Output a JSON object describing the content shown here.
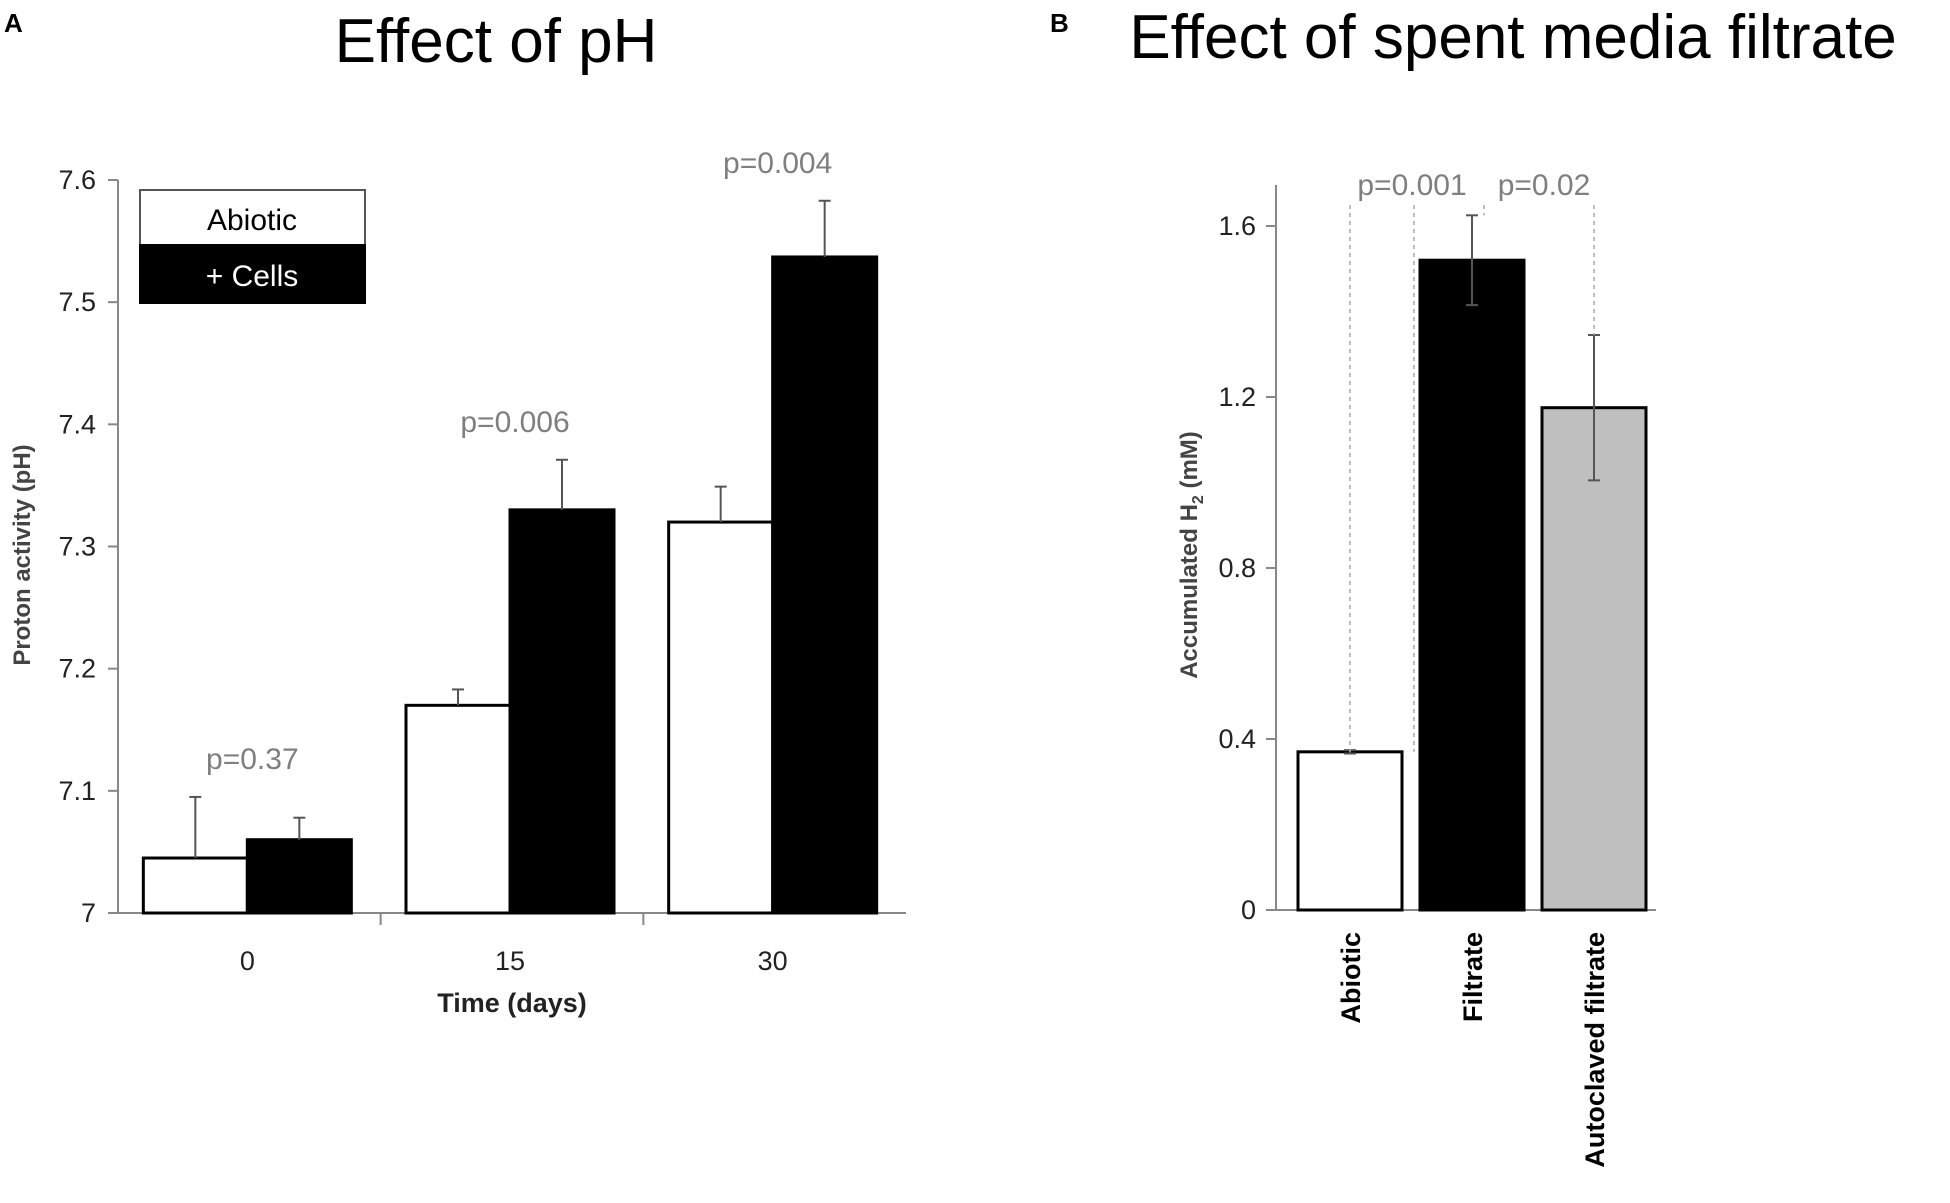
{
  "chart_data": [
    {
      "panel": "A",
      "type": "bar",
      "title": "Effect of pH",
      "xlabel": "Time (days)",
      "ylabel": "Proton activity (pH)",
      "categories": [
        "0",
        "15",
        "30"
      ],
      "ylim": [
        7.0,
        7.6
      ],
      "yticks": [
        "7",
        "7.1",
        "7.2",
        "7.3",
        "7.4",
        "7.5",
        "7.6"
      ],
      "series": [
        {
          "name": "Abiotic",
          "color": "#ffffff",
          "values": [
            7.045,
            7.17,
            7.32
          ],
          "errors": [
            0.05,
            0.013,
            0.029
          ]
        },
        {
          "name": "+ Cells",
          "color": "#000000",
          "values": [
            7.06,
            7.33,
            7.537
          ],
          "errors": [
            0.018,
            0.041,
            0.046
          ]
        }
      ],
      "annotations": [
        "p=0.37",
        "p=0.006",
        "p=0.004"
      ],
      "legend_position": "top-left"
    },
    {
      "panel": "B",
      "type": "bar",
      "title": "Effect of spent media filtrate",
      "ylabel": "Accumulated H2 (mM)",
      "categories": [
        "Abiotic",
        "Filtrate",
        "Autoclaved filtrate"
      ],
      "colors": [
        "#ffffff",
        "#000000",
        "#bfbfbf"
      ],
      "values": [
        0.37,
        1.52,
        1.175
      ],
      "errors": [
        0.004,
        0.105,
        0.17
      ],
      "ylim": [
        0,
        1.7
      ],
      "yticks": [
        "0",
        "0.4",
        "0.8",
        "1.2",
        "1.6"
      ],
      "annotations": [
        "p=0.001",
        "p=0.02"
      ]
    }
  ]
}
